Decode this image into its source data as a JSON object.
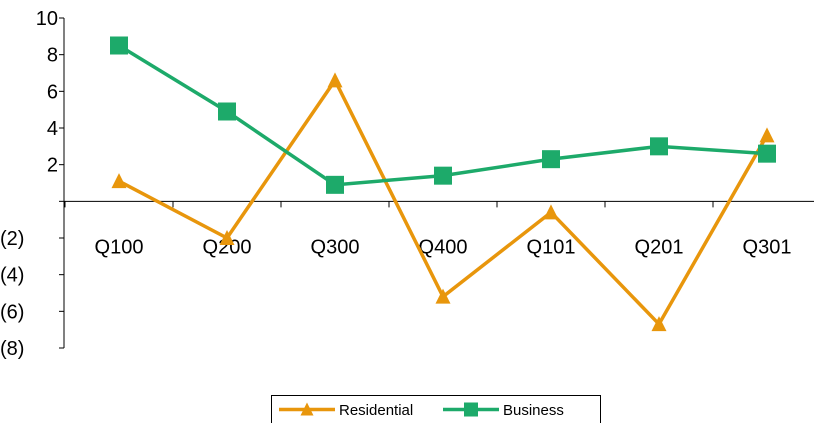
{
  "chart_data": {
    "type": "line",
    "title": "",
    "xlabel": "",
    "ylabel": "",
    "categories": [
      "Q100",
      "Q200",
      "Q300",
      "Q400",
      "Q101",
      "Q201",
      "Q301"
    ],
    "y_tick_values": [
      10,
      8,
      6,
      4,
      2,
      -2,
      -4,
      -6,
      -8
    ],
    "y_tick_labels": [
      "10",
      "8",
      "6",
      "4",
      "2",
      "(2)",
      "(4)",
      "(6)",
      "(8)"
    ],
    "ylim": [
      -8,
      10
    ],
    "grid": false,
    "legend_position": "bottom",
    "series": [
      {
        "name": "Residential",
        "values": [
          1.1,
          -2.0,
          6.6,
          -5.2,
          -0.6,
          -6.7,
          3.6
        ],
        "color": "#E8960C",
        "marker": "triangle"
      },
      {
        "name": "Business",
        "values": [
          8.5,
          4.9,
          0.9,
          1.4,
          2.3,
          3.0,
          2.6
        ],
        "color": "#1DAA6A",
        "marker": "square"
      }
    ]
  }
}
